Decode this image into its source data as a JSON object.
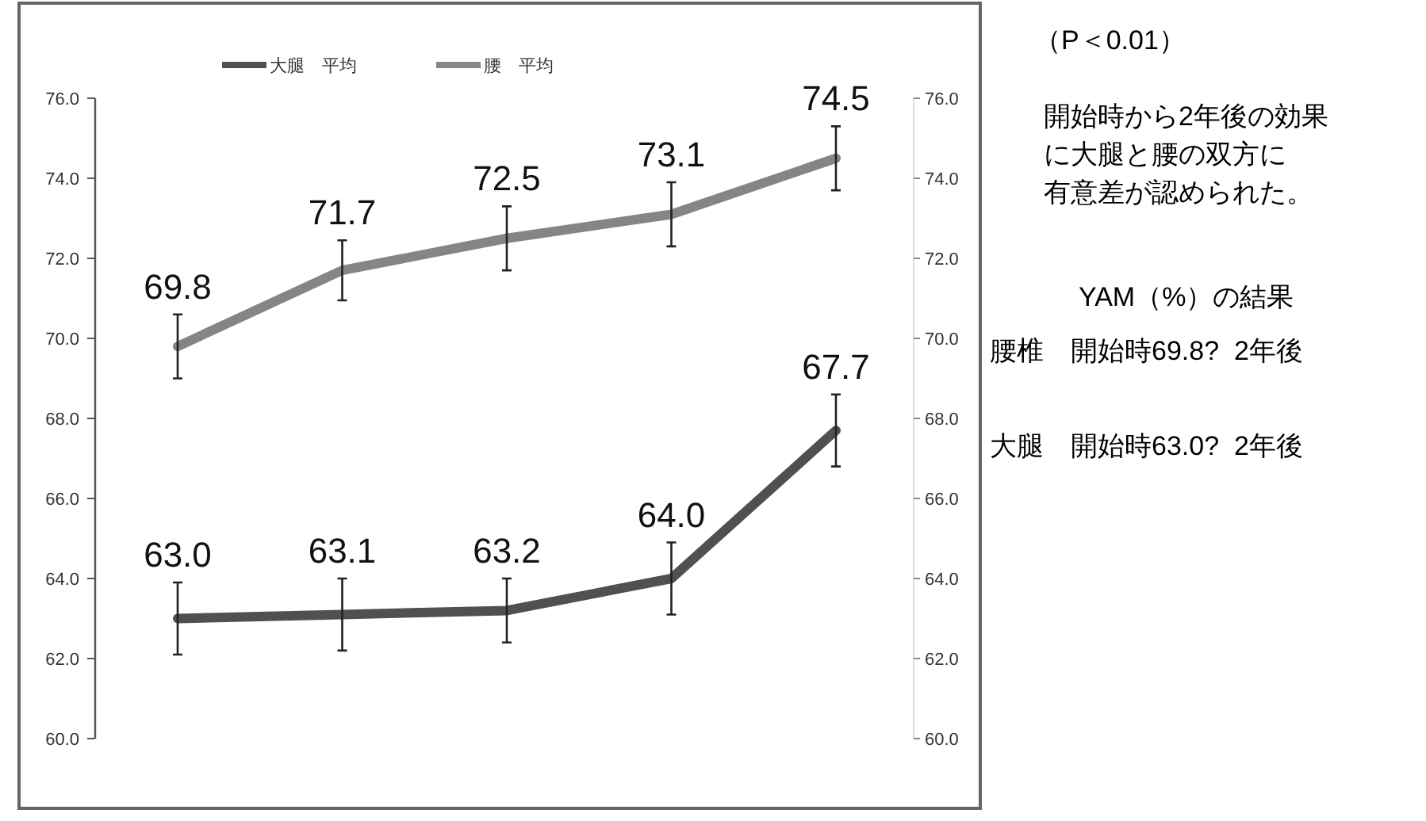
{
  "chart_data": {
    "type": "line",
    "categories": [
      null,
      null,
      null,
      null,
      null
    ],
    "series": [
      {
        "name": "大腿　平均",
        "color": "#505050",
        "values": [
          63.0,
          63.1,
          63.2,
          64.0,
          67.7
        ],
        "errors": [
          0.9,
          0.9,
          0.8,
          0.9,
          0.9
        ],
        "value_labels": [
          "63.0",
          "63.1",
          "63.2",
          "64.0",
          "67.7"
        ]
      },
      {
        "name": "腰　平均",
        "color": "#858585",
        "values": [
          69.8,
          71.7,
          72.5,
          73.1,
          74.5
        ],
        "errors": [
          0.8,
          0.75,
          0.8,
          0.8,
          0.8
        ],
        "value_labels": [
          "69.8",
          "71.7",
          "72.5",
          "73.1",
          "74.5"
        ]
      }
    ],
    "ylim": [
      60,
      76
    ],
    "yticks": [
      {
        "value": 60,
        "label": "60.0"
      },
      {
        "value": 62,
        "label": "62.0"
      },
      {
        "value": 64,
        "label": "64.0"
      },
      {
        "value": 66,
        "label": "66.0"
      },
      {
        "value": 68,
        "label": "68.0"
      },
      {
        "value": 70,
        "label": "70.0"
      },
      {
        "value": 72,
        "label": "72.0"
      },
      {
        "value": 74,
        "label": "74.0"
      },
      {
        "value": 76,
        "label": "76.0"
      }
    ],
    "y2lim": [
      60,
      76
    ],
    "y2ticks": [
      {
        "value": 60,
        "label": "60.0"
      },
      {
        "value": 62,
        "label": "62.0"
      },
      {
        "value": 64,
        "label": "64.0"
      },
      {
        "value": 66,
        "label": "66.0"
      },
      {
        "value": 68,
        "label": "68.0"
      },
      {
        "value": 70,
        "label": "70.0"
      },
      {
        "value": 72,
        "label": "72.0"
      },
      {
        "value": 74,
        "label": "74.0"
      },
      {
        "value": 76,
        "label": "76.0"
      }
    ],
    "legend": "top",
    "grid": false,
    "marker": "none",
    "line_style": "solid",
    "annotations": [
      "（P＜0.01）",
      "開始時から2年後の効果",
      "に大腿と腰の双方に",
      "有意差が認められた。",
      "YAM（%）の結果",
      "腰椎　開始時69.8?  2年後",
      "大腿　開始時63.0?  2年後"
    ]
  }
}
